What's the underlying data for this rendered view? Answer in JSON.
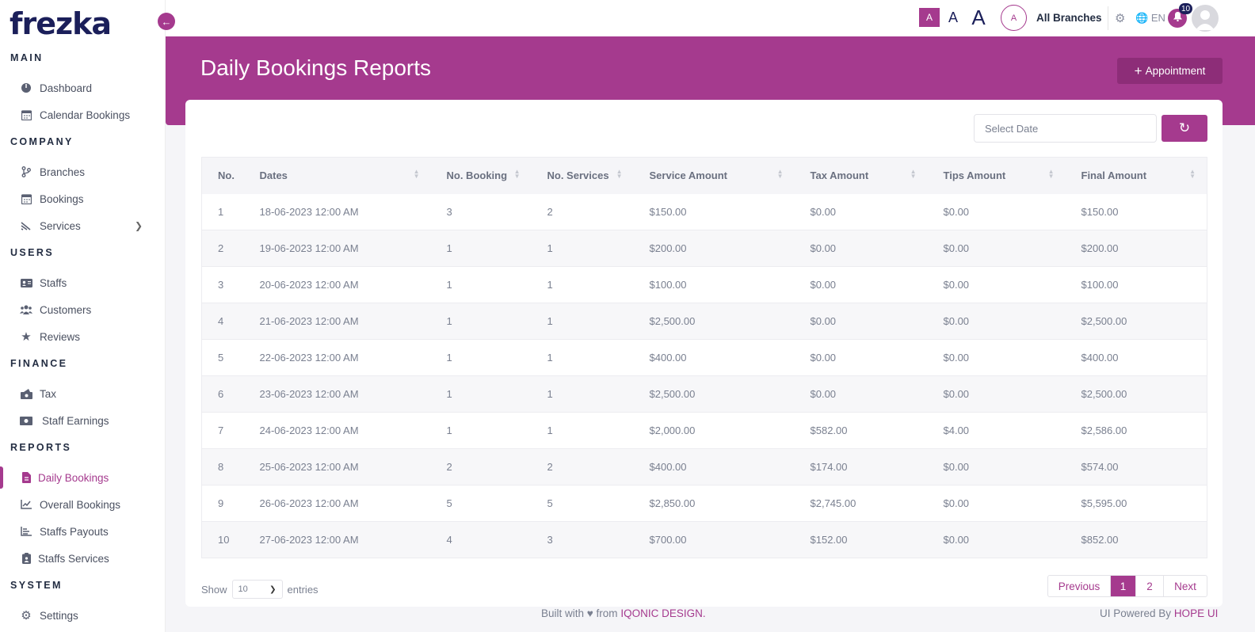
{
  "brand": {
    "logo": "frezka"
  },
  "sidebar": {
    "sections": [
      {
        "title": "MAIN"
      },
      {
        "title": "COMPANY"
      },
      {
        "title": "USERS"
      },
      {
        "title": "FINANCE"
      },
      {
        "title": "REPORTS"
      },
      {
        "title": "SYSTEM"
      }
    ],
    "items": [
      {
        "label": "Dashboard",
        "icon": "dashboard-icon"
      },
      {
        "label": "Calendar Bookings",
        "icon": "calendar-icon"
      },
      {
        "label": "Branches",
        "icon": "branch-icon"
      },
      {
        "label": "Bookings",
        "icon": "calendar-icon"
      },
      {
        "label": "Services",
        "icon": "services-icon"
      },
      {
        "label": "Staffs",
        "icon": "id-card-icon"
      },
      {
        "label": "Customers",
        "icon": "users-icon"
      },
      {
        "label": "Reviews",
        "icon": "star-icon"
      },
      {
        "label": "Tax",
        "icon": "tax-icon"
      },
      {
        "label": "Staff Earnings",
        "icon": "money-icon"
      },
      {
        "label": "Daily Bookings",
        "icon": "report-icon",
        "active": true
      },
      {
        "label": "Overall Bookings",
        "icon": "chart-line-icon"
      },
      {
        "label": "Staffs Payouts",
        "icon": "bar-list-icon"
      },
      {
        "label": "Staffs Services",
        "icon": "clipboard-icon"
      },
      {
        "label": "Settings",
        "icon": "gear-icon"
      }
    ]
  },
  "topbar": {
    "font_sizes": [
      "A",
      "A",
      "A"
    ],
    "branch_avatar": "A",
    "branch_label": "All Branches",
    "language": "EN",
    "notification_count": "10"
  },
  "page": {
    "title": "Daily Bookings Reports",
    "appointment_button": "Appointment",
    "date_placeholder": "Select Date"
  },
  "table": {
    "headers": [
      "No.",
      "Dates",
      "No. Booking",
      "No. Services",
      "Service Amount",
      "Tax Amount",
      "Tips Amount",
      "Final Amount"
    ],
    "rows": [
      [
        "1",
        "18-06-2023 12:00 AM",
        "3",
        "2",
        "$150.00",
        "$0.00",
        "$0.00",
        "$150.00"
      ],
      [
        "2",
        "19-06-2023 12:00 AM",
        "1",
        "1",
        "$200.00",
        "$0.00",
        "$0.00",
        "$200.00"
      ],
      [
        "3",
        "20-06-2023 12:00 AM",
        "1",
        "1",
        "$100.00",
        "$0.00",
        "$0.00",
        "$100.00"
      ],
      [
        "4",
        "21-06-2023 12:00 AM",
        "1",
        "1",
        "$2,500.00",
        "$0.00",
        "$0.00",
        "$2,500.00"
      ],
      [
        "5",
        "22-06-2023 12:00 AM",
        "1",
        "1",
        "$400.00",
        "$0.00",
        "$0.00",
        "$400.00"
      ],
      [
        "6",
        "23-06-2023 12:00 AM",
        "1",
        "1",
        "$2,500.00",
        "$0.00",
        "$0.00",
        "$2,500.00"
      ],
      [
        "7",
        "24-06-2023 12:00 AM",
        "1",
        "1",
        "$2,000.00",
        "$582.00",
        "$4.00",
        "$2,586.00"
      ],
      [
        "8",
        "25-06-2023 12:00 AM",
        "2",
        "2",
        "$400.00",
        "$174.00",
        "$0.00",
        "$574.00"
      ],
      [
        "9",
        "26-06-2023 12:00 AM",
        "5",
        "5",
        "$2,850.00",
        "$2,745.00",
        "$0.00",
        "$5,595.00"
      ],
      [
        "10",
        "27-06-2023 12:00 AM",
        "4",
        "3",
        "$700.00",
        "$152.00",
        "$0.00",
        "$852.00"
      ]
    ]
  },
  "length": {
    "show": "Show",
    "value": "10",
    "entries": "entries"
  },
  "pagination": {
    "previous": "Previous",
    "pages": [
      "1",
      "2"
    ],
    "next": "Next"
  },
  "footer": {
    "built_with": "Built with ♥ from",
    "company": "IQONIC DESIGN.",
    "powered_by": "UI Powered By",
    "ui_name": "HOPE UI"
  },
  "colors": {
    "accent": "#a53a8e",
    "navy": "#1b1f5a"
  }
}
